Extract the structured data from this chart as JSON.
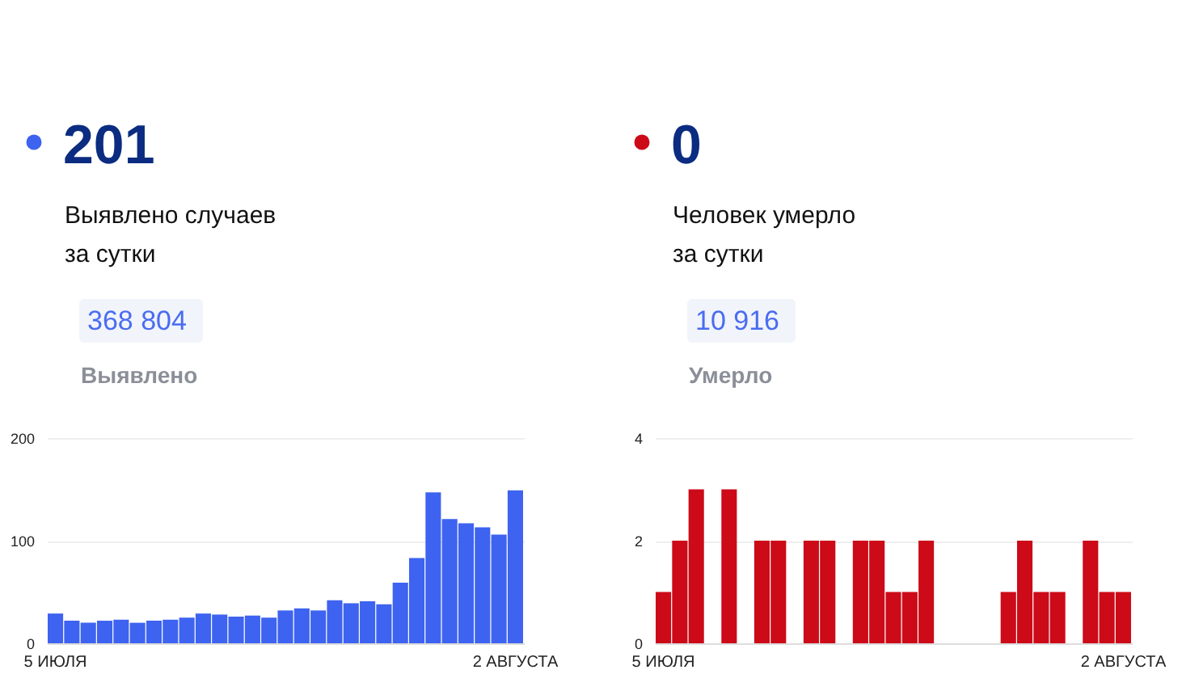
{
  "chart_data": [
    {
      "type": "bar",
      "title": "201",
      "subtitle": "Выявлено случаев за сутки",
      "annotations": [
        "368 804",
        "Выявлено"
      ],
      "categories": [
        "5 ИЮЛЯ",
        null,
        null,
        null,
        null,
        null,
        null,
        null,
        null,
        null,
        null,
        null,
        null,
        null,
        null,
        null,
        null,
        null,
        null,
        null,
        null,
        null,
        null,
        null,
        null,
        null,
        null,
        null,
        "2 АВГУСТА"
      ],
      "values": [
        29,
        22,
        20,
        22,
        23,
        20,
        22,
        23,
        25,
        29,
        28,
        26,
        27,
        25,
        32,
        34,
        32,
        42,
        39,
        41,
        38,
        59,
        83,
        147,
        121,
        117,
        113,
        106,
        149
      ],
      "color": "#3d63f0",
      "ylim": [
        0,
        200
      ],
      "yticks": [
        0,
        100,
        200
      ],
      "grid": "y"
    },
    {
      "type": "bar",
      "title": "0",
      "subtitle": "Человек умерло за сутки",
      "annotations": [
        "10 916",
        "Умерло"
      ],
      "categories": [
        "5 ИЮЛЯ",
        null,
        null,
        null,
        null,
        null,
        null,
        null,
        null,
        null,
        null,
        null,
        null,
        null,
        null,
        null,
        null,
        null,
        null,
        null,
        null,
        null,
        null,
        null,
        null,
        null,
        null,
        null,
        "2 АВГУСТА"
      ],
      "values": [
        1,
        2,
        3,
        0,
        3,
        0,
        2,
        2,
        0,
        2,
        2,
        0,
        2,
        2,
        1,
        1,
        2,
        0,
        0,
        0,
        0,
        1,
        2,
        1,
        1,
        0,
        2,
        1,
        1
      ],
      "color": "#cc0a18",
      "ylim": [
        0,
        4
      ],
      "yticks": [
        0,
        2,
        4
      ],
      "grid": "y"
    }
  ]
}
